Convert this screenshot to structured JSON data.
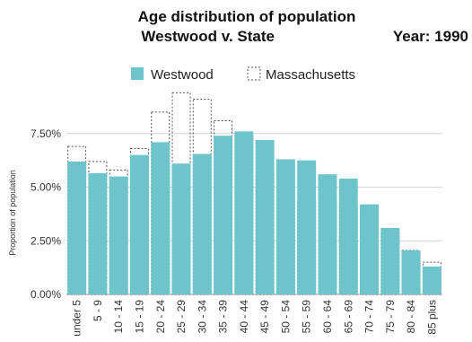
{
  "chart_data": {
    "type": "bar",
    "title": "Age distribution of population",
    "subtitle": "Westwood  v. State",
    "year_label": "Year: 1990",
    "ylabel": "Proportion of population",
    "xlabel": "",
    "ylim": [
      0,
      9.5
    ],
    "yticks": [
      0,
      2.5,
      5.0,
      7.5
    ],
    "ytick_labels": [
      "0.00%",
      "2.50%",
      "5.00%",
      "7.50%"
    ],
    "grid": true,
    "legend_position": "top",
    "categories": [
      "under 5",
      "5 - 9",
      "10 - 14",
      "15 - 19",
      "20 - 24",
      "25 - 29",
      "30 - 34",
      "35 - 39",
      "40 - 44",
      "45 - 49",
      "50 - 54",
      "55 - 59",
      "60 - 64",
      "65 - 69",
      "70 - 74",
      "75 - 79",
      "80 - 84",
      "85 plus"
    ],
    "series": [
      {
        "name": "Westwood",
        "style": "filled",
        "color": "#6ec4cb",
        "values": [
          6.2,
          5.65,
          5.5,
          6.5,
          7.1,
          6.1,
          6.55,
          7.4,
          7.6,
          7.2,
          6.3,
          6.25,
          5.6,
          5.4,
          4.2,
          3.1,
          2.05,
          1.3
        ]
      },
      {
        "name": "Massachusetts",
        "style": "dashed-outline",
        "color": "#555555",
        "values": [
          6.9,
          6.2,
          5.8,
          6.8,
          8.5,
          9.4,
          9.1,
          8.1,
          7.4,
          5.6,
          4.4,
          4.3,
          4.35,
          4.2,
          3.5,
          2.9,
          2.05,
          1.5
        ]
      }
    ]
  }
}
